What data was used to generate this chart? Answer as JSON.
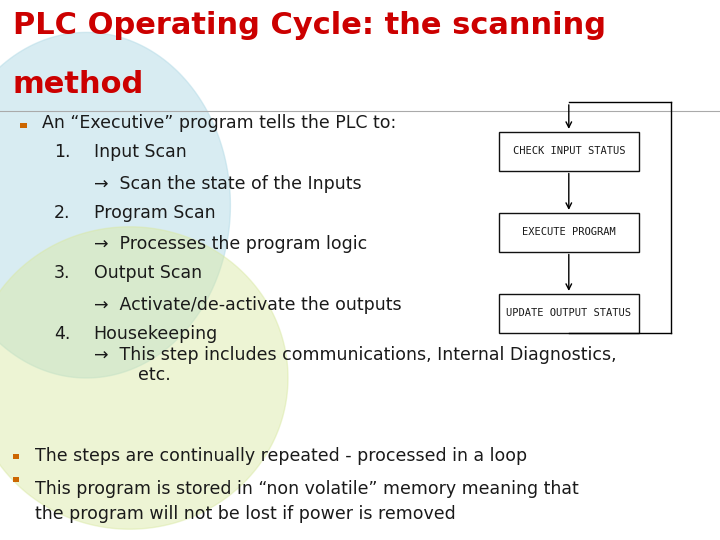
{
  "title_line1": "PLC Operating Cycle: the scanning",
  "title_line2": "method",
  "title_color": "#cc0000",
  "title_fontsize": 22,
  "bg_color": "#ffffff",
  "bullet_sq_color": "#cc6600",
  "text_color": "#1a1a1a",
  "body_fontsize": 12.5,
  "sub_fontsize": 12.5,
  "bullet1": "An “Executive” program tells the PLC to:",
  "items": [
    [
      "1.",
      "Input Scan",
      "→  Scan the state of the Inputs"
    ],
    [
      "2.",
      "Program Scan",
      "→  Processes the program logic"
    ],
    [
      "3.",
      "Output Scan",
      "→  Activate/de-activate the outputs"
    ],
    [
      "4.",
      "Housekeeping",
      "→  This step includes communications, Internal Diagnostics,\n        etc."
    ]
  ],
  "bullet2": "The steps are continually repeated - processed in a loop",
  "bullet3": "This program is stored in “non volatile” memory meaning that\nthe program will not be lost if power is removed",
  "diagram_boxes": [
    "CHECK INPUT STATUS",
    "EXECUTE PROGRAM",
    "UPDATE OUTPUT STATUS"
  ],
  "diagram_font": "monospace",
  "diagram_fontsize": 7.5,
  "box_color": "#ffffff",
  "box_edge_color": "#111111",
  "arrow_color": "#111111",
  "blob1_color": "#b8dde8",
  "blob1_alpha": 0.55,
  "blob2_color": "#d8e8a0",
  "blob2_alpha": 0.45
}
